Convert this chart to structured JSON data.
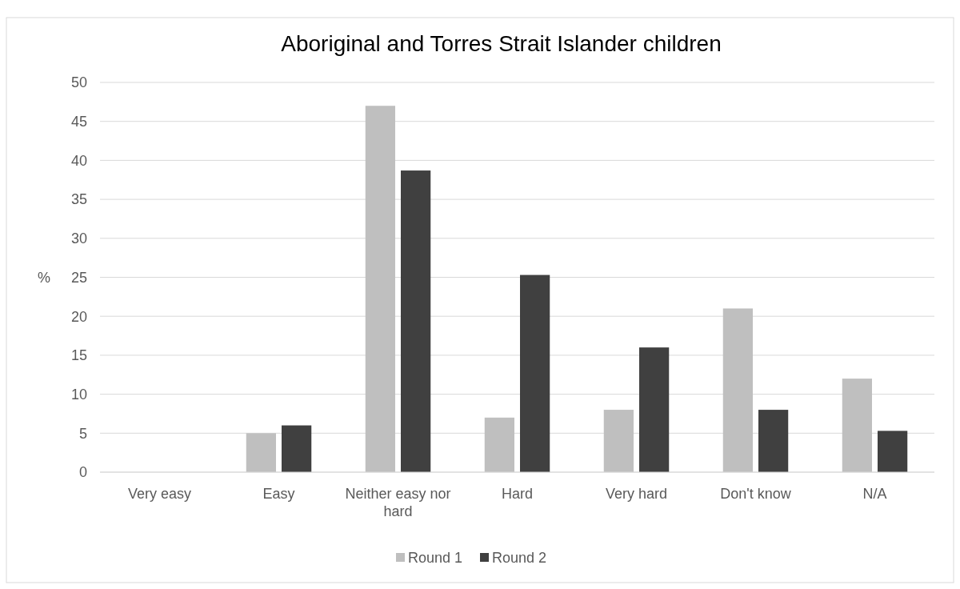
{
  "chart_data": {
    "type": "bar",
    "title": "Aboriginal and Torres Strait Islander children",
    "ylabel": "%",
    "categories": [
      "Very easy",
      "Easy",
      "Neither easy nor hard",
      "Hard",
      "Very hard",
      "Don't know",
      "N/A"
    ],
    "series": [
      {
        "name": "Round 1",
        "color": "#bfbfbf",
        "values": [
          0,
          5,
          47,
          7,
          8,
          21,
          12
        ]
      },
      {
        "name": "Round 2",
        "color": "#404040",
        "values": [
          0,
          6,
          38.7,
          25.3,
          16,
          8,
          5.3
        ]
      }
    ],
    "ylim": [
      0,
      50
    ],
    "yticks": [
      0,
      5,
      10,
      15,
      20,
      25,
      30,
      35,
      40,
      45,
      50
    ],
    "grid": "y",
    "legend": "bottom"
  }
}
